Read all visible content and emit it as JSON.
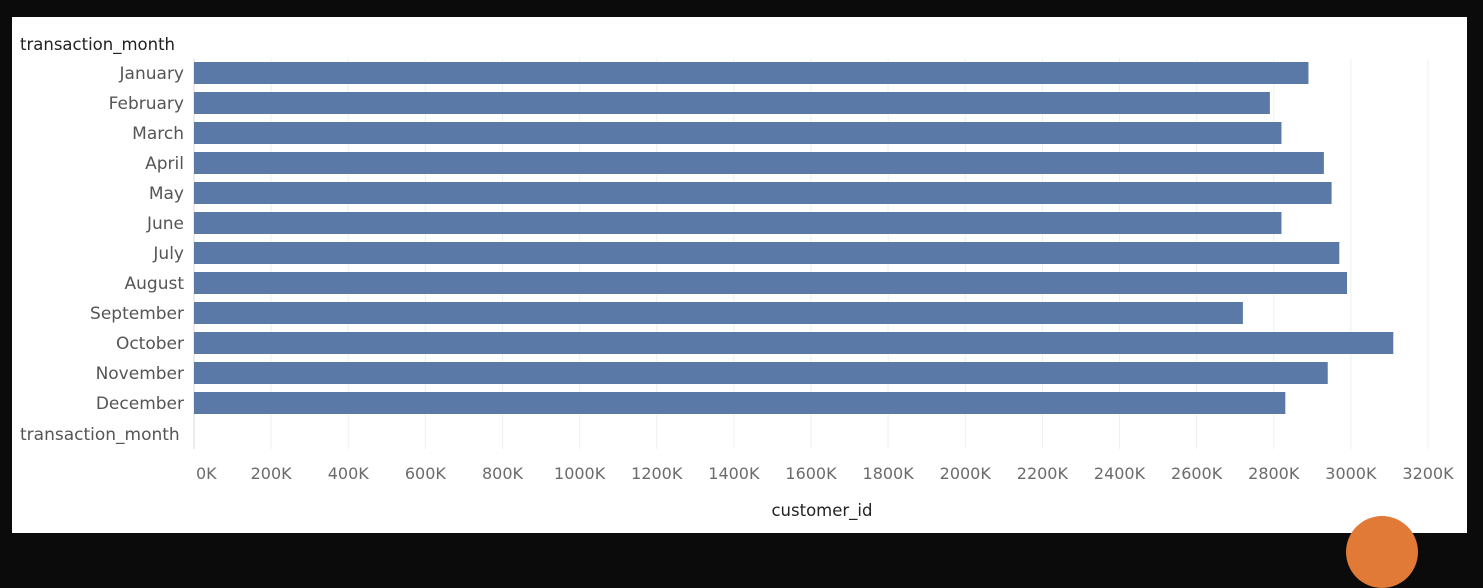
{
  "chart_data": {
    "type": "bar",
    "orientation": "horizontal",
    "row_header": "transaction_month",
    "footer_row_label": "transaction_month",
    "categories": [
      "January",
      "February",
      "March",
      "April",
      "May",
      "June",
      "July",
      "August",
      "September",
      "October",
      "November",
      "December"
    ],
    "values": [
      2890000,
      2790000,
      2820000,
      2930000,
      2950000,
      2820000,
      2970000,
      2990000,
      2720000,
      3110000,
      2940000,
      2830000
    ],
    "xlabel": "customer_id",
    "ylabel": "transaction_month",
    "xlim": [
      0,
      3200000
    ],
    "ticks": [
      {
        "value": 0,
        "label": "0K"
      },
      {
        "value": 200000,
        "label": "200K"
      },
      {
        "value": 400000,
        "label": "400K"
      },
      {
        "value": 600000,
        "label": "600K"
      },
      {
        "value": 800000,
        "label": "800K"
      },
      {
        "value": 1000000,
        "label": "1000K"
      },
      {
        "value": 1200000,
        "label": "1200K"
      },
      {
        "value": 1400000,
        "label": "1400K"
      },
      {
        "value": 1600000,
        "label": "1600K"
      },
      {
        "value": 1800000,
        "label": "1800K"
      },
      {
        "value": 2000000,
        "label": "2000K"
      },
      {
        "value": 2200000,
        "label": "2200K"
      },
      {
        "value": 2400000,
        "label": "2400K"
      },
      {
        "value": 2600000,
        "label": "2600K"
      },
      {
        "value": 2800000,
        "label": "2800K"
      },
      {
        "value": 3000000,
        "label": "3000K"
      },
      {
        "value": 3200000,
        "label": "3200K"
      }
    ],
    "grid": true,
    "bar_color": "#5b79a6"
  }
}
